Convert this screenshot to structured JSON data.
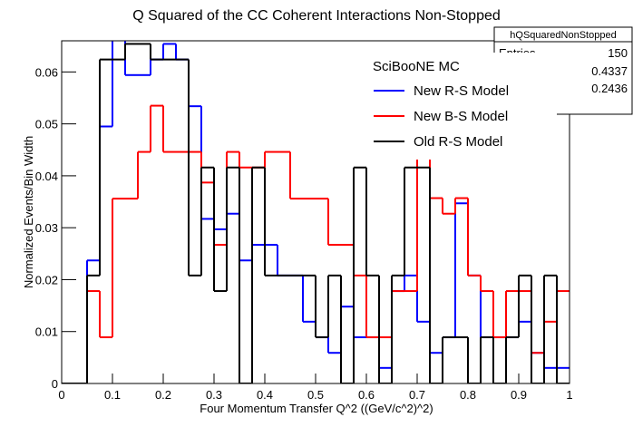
{
  "chart_data": {
    "type": "histogram",
    "title": "Q Squared of the CC Coherent Interactions Non-Stopped",
    "x_label": "Four Momentum Transfer Q^2 ((GeV/c^2)^2)",
    "y_label": "Normalized Events/Bin Width",
    "legend_header": "SciBooNE MC",
    "stats": {
      "name": "hQSquaredNonStopped",
      "entries_label": "Entries",
      "entries": 150,
      "mean": 0.4337,
      "rms": 0.2436
    },
    "bins": [
      0,
      0.025,
      0.05,
      0.075,
      0.1,
      0.125,
      0.15,
      0.175,
      0.2,
      0.225,
      0.25,
      0.275,
      0.3,
      0.325,
      0.35,
      0.375,
      0.4,
      0.425,
      0.45,
      0.475,
      0.5,
      0.525,
      0.55,
      0.575,
      0.6,
      0.625,
      0.65,
      0.675,
      0.7,
      0.725,
      0.75,
      0.775,
      0.8,
      0.825,
      0.85,
      0.875,
      0.9,
      0.925,
      0.95,
      0.975,
      1
    ],
    "xlim": [
      0,
      1
    ],
    "xticks": [
      0,
      0.1,
      0.2,
      0.3,
      0.4,
      0.5,
      0.6,
      0.7,
      0.8,
      0.9,
      1
    ],
    "ylim": [
      0,
      0.066
    ],
    "yticks": [
      0,
      0.01,
      0.02,
      0.03,
      0.04,
      0.05,
      0.06
    ],
    "series": [
      {
        "name": "New R-S Model",
        "color": "#0000ff",
        "values": [
          0,
          0,
          0.0237,
          0.0495,
          0.07,
          0.0594,
          0.0594,
          0.0624,
          0.0654,
          0.0624,
          0.0534,
          0.0317,
          0.0297,
          0.0327,
          0.0237,
          0.0267,
          0.0267,
          0.0208,
          0.0208,
          0.0119,
          0.0089,
          0.0059,
          0.0148,
          0.0089,
          0.0089,
          0.003,
          0.0178,
          0.0208,
          0.0119,
          0.0059,
          0.0089,
          0.0347,
          0.0208,
          0.0089,
          0.0089,
          0.0089,
          0.0119,
          0.0059,
          0.003,
          0.003
        ]
      },
      {
        "name": "New B-S Model",
        "color": "#ff0000",
        "values": [
          0,
          0,
          0.0178,
          0.0089,
          0.0356,
          0.0356,
          0.0446,
          0.0535,
          0.0446,
          0.0446,
          0.0446,
          0.0387,
          0.0267,
          0.0446,
          0.0416,
          0.0416,
          0.0446,
          0.0446,
          0.0356,
          0.0356,
          0.0356,
          0.0267,
          0.0267,
          0.0208,
          0.0089,
          0.0089,
          0.0178,
          0.0178,
          0.0475,
          0.0357,
          0.0327,
          0.0357,
          0.0208,
          0.0178,
          0.0089,
          0.0178,
          0.0178,
          0.0059,
          0.0119,
          0.0178
        ]
      },
      {
        "name": "Old R-S Model",
        "color": "#000000",
        "values": [
          0,
          0,
          0.0208,
          0.0624,
          0.0624,
          0.0654,
          0.0654,
          0.0624,
          0.0624,
          0.0624,
          0.0208,
          0.0416,
          0.0178,
          0.0416,
          0,
          0.0416,
          0.0208,
          0.0208,
          0.0208,
          0.0208,
          0.0089,
          0.0208,
          0,
          0.0416,
          0.0208,
          0,
          0.0208,
          0.0416,
          0.0416,
          0,
          0.0089,
          0.0089,
          0,
          0.0089,
          0,
          0.0089,
          0.0208,
          0,
          0.0208,
          0
        ]
      }
    ]
  }
}
